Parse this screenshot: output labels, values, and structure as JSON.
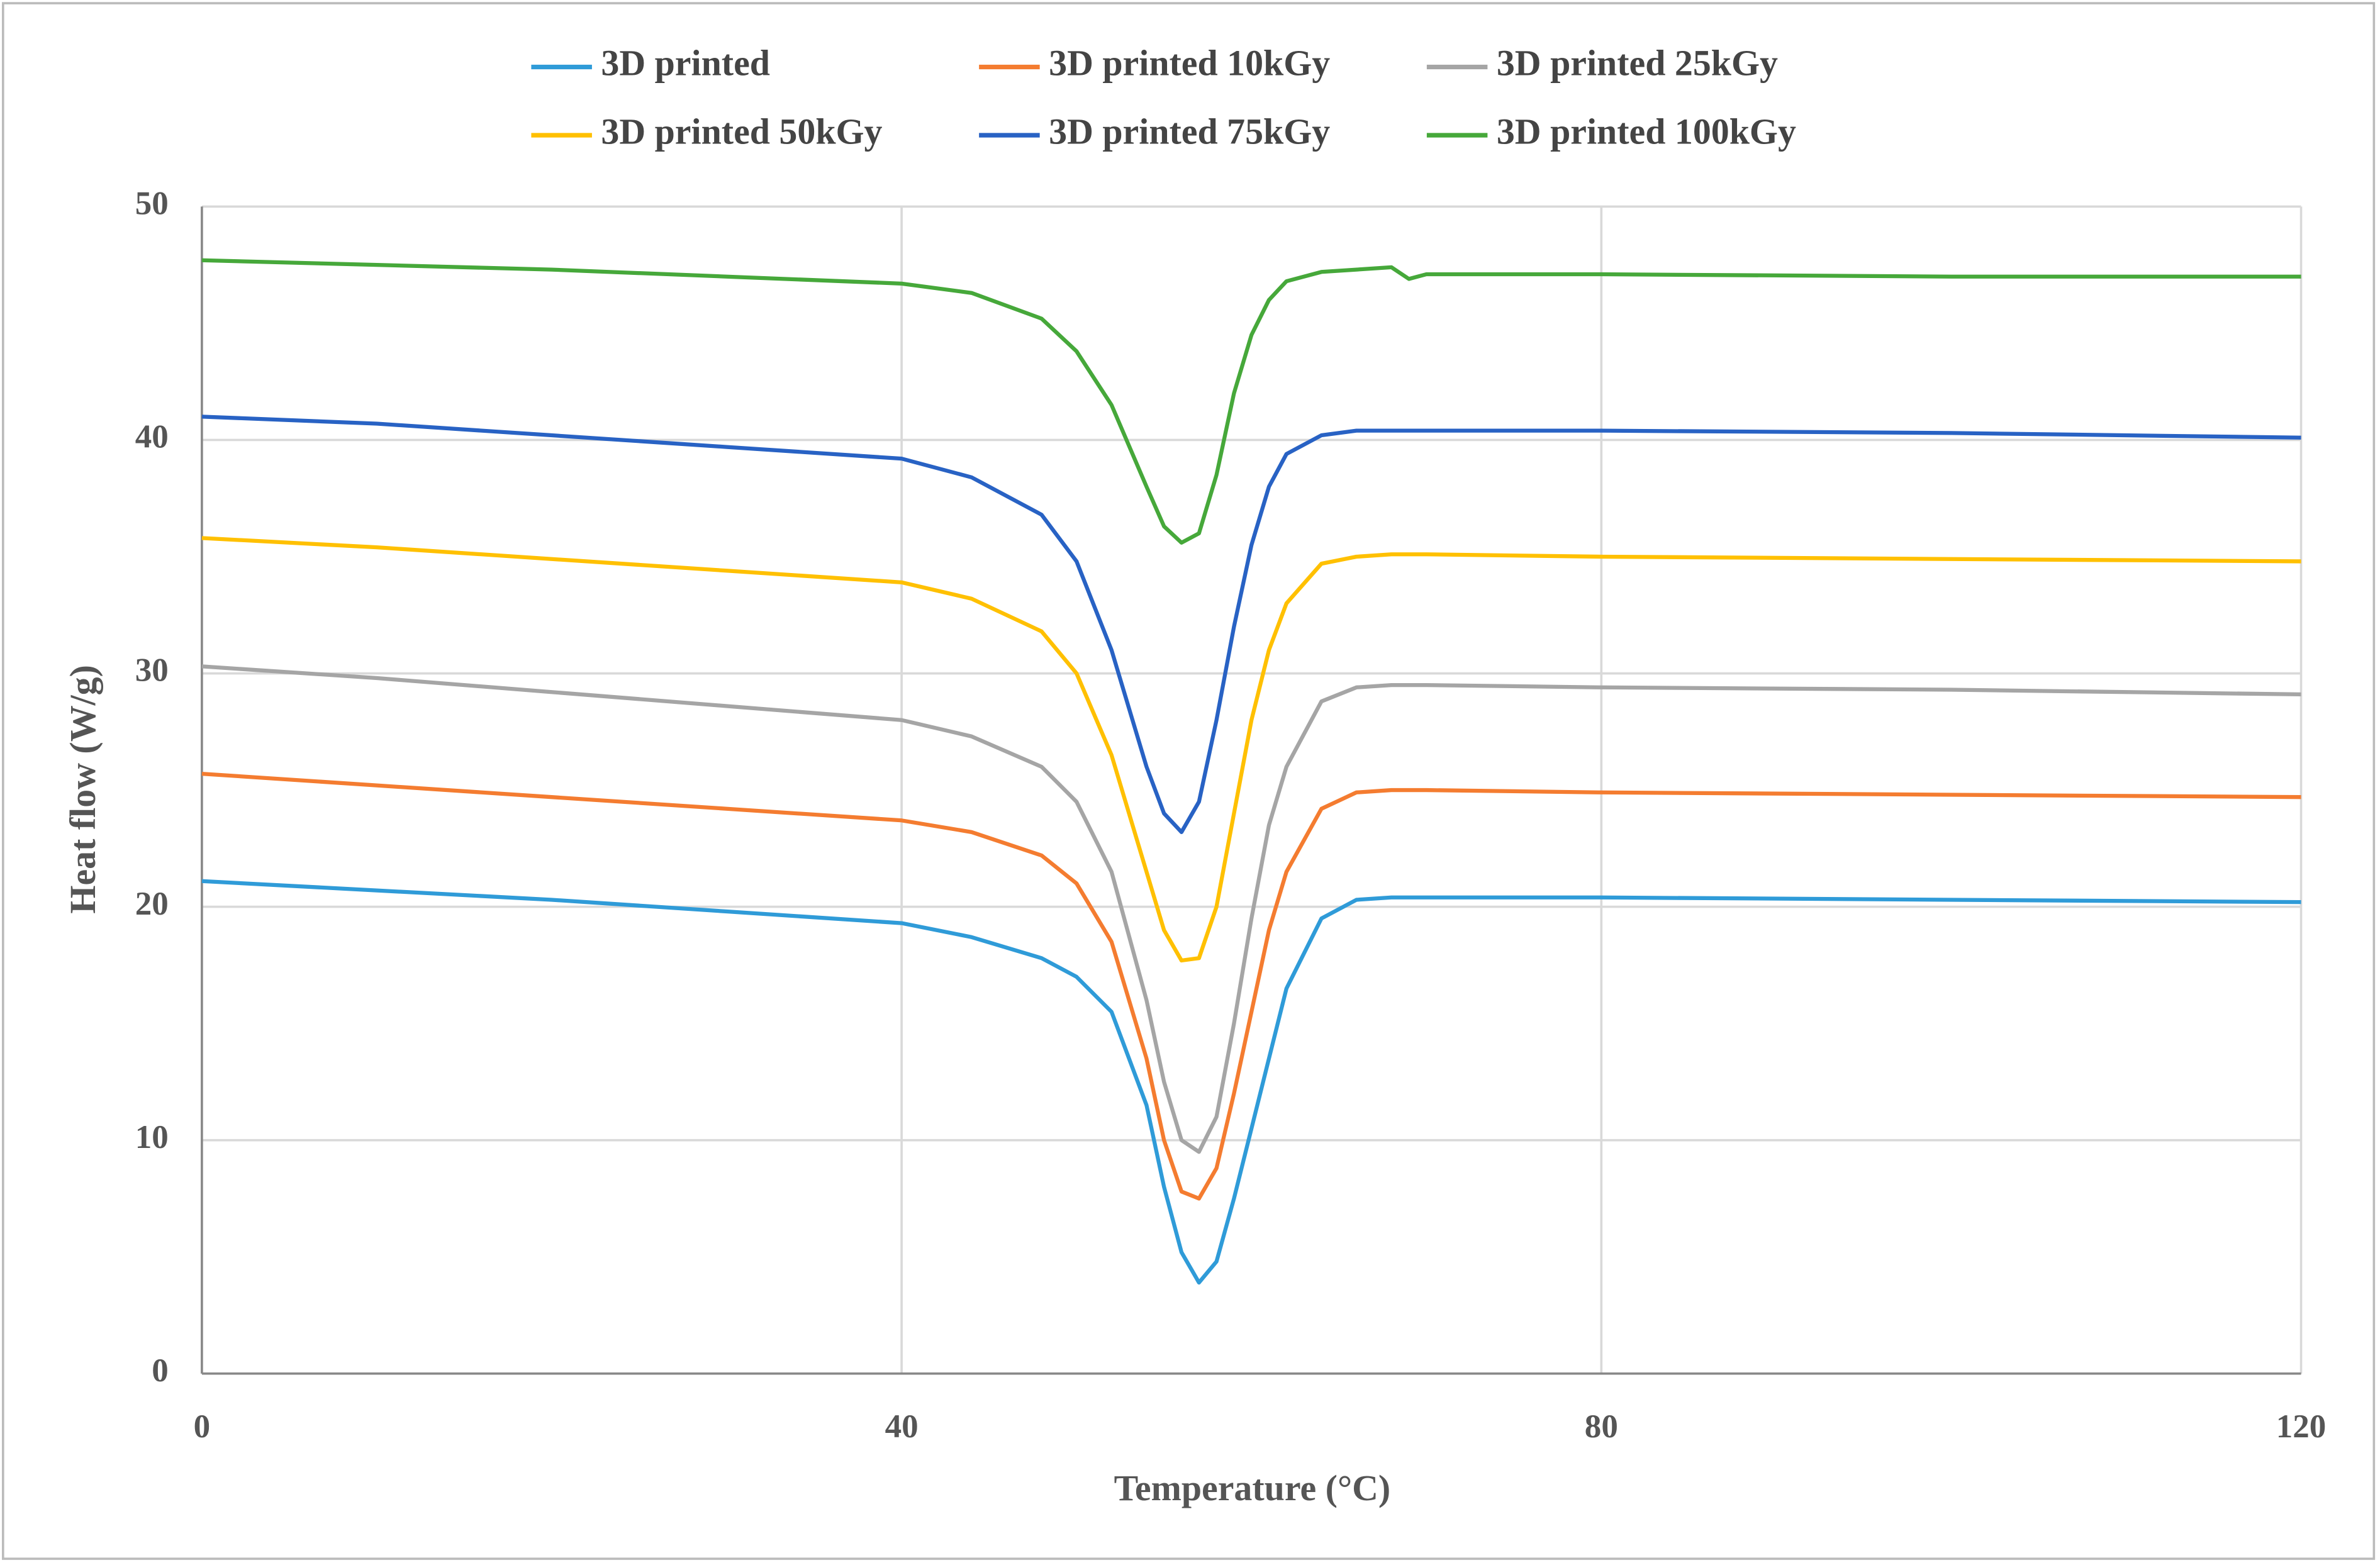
{
  "chart_data": {
    "type": "line",
    "x_label": "Temperature (°C)",
    "y_label": "Heat flow (W/g)",
    "x": [
      0,
      10,
      20,
      30,
      40,
      44,
      48,
      50,
      52,
      54,
      55,
      56,
      57,
      58,
      59,
      60,
      61,
      62,
      64,
      66,
      68,
      69,
      70,
      80,
      100,
      120
    ],
    "series": [
      {
        "name": "3D printed",
        "color": "#2f9bd8",
        "values": [
          21.1,
          20.7,
          20.3,
          19.8,
          19.3,
          18.7,
          17.8,
          17.0,
          15.5,
          11.5,
          8.0,
          5.2,
          3.9,
          4.8,
          7.5,
          10.5,
          13.5,
          16.5,
          19.5,
          20.3,
          20.4,
          20.4,
          20.4,
          20.4,
          20.3,
          20.2
        ]
      },
      {
        "name": "3D printed 10kGy",
        "color": "#f47c30",
        "values": [
          25.7,
          25.2,
          24.7,
          24.2,
          23.7,
          23.2,
          22.2,
          21.0,
          18.5,
          13.5,
          10.0,
          7.8,
          7.5,
          8.8,
          12.0,
          15.5,
          19.0,
          21.5,
          24.2,
          24.9,
          25.0,
          25.0,
          25.0,
          24.9,
          24.8,
          24.7
        ]
      },
      {
        "name": "3D printed 25kGy",
        "color": "#a5a5a5",
        "values": [
          30.3,
          29.8,
          29.2,
          28.6,
          28.0,
          27.3,
          26.0,
          24.5,
          21.5,
          16.0,
          12.5,
          10.0,
          9.5,
          11.0,
          15.0,
          19.5,
          23.5,
          26.0,
          28.8,
          29.4,
          29.5,
          29.5,
          29.5,
          29.4,
          29.3,
          29.1
        ]
      },
      {
        "name": "3D printed 50kGy",
        "color": "#ffc000",
        "values": [
          35.8,
          35.4,
          34.9,
          34.4,
          33.9,
          33.2,
          31.8,
          30.0,
          26.5,
          21.5,
          19.0,
          17.7,
          17.8,
          20.0,
          24.0,
          28.0,
          31.0,
          33.0,
          34.7,
          35.0,
          35.1,
          35.1,
          35.1,
          35.0,
          34.9,
          34.8
        ]
      },
      {
        "name": "3D printed 75kGy",
        "color": "#2862c4",
        "values": [
          41.0,
          40.7,
          40.2,
          39.7,
          39.2,
          38.4,
          36.8,
          34.8,
          31.0,
          26.0,
          24.0,
          23.2,
          24.5,
          28.0,
          32.0,
          35.5,
          38.0,
          39.4,
          40.2,
          40.4,
          40.4,
          40.4,
          40.4,
          40.4,
          40.3,
          40.1
        ]
      },
      {
        "name": "3D printed 100kGy",
        "color": "#46a83a",
        "values": [
          47.7,
          47.5,
          47.3,
          47.0,
          46.7,
          46.3,
          45.2,
          43.8,
          41.5,
          38.0,
          36.3,
          35.6,
          36.0,
          38.5,
          42.0,
          44.5,
          46.0,
          46.8,
          47.2,
          47.3,
          47.4,
          46.9,
          47.1,
          47.1,
          47.0,
          47.0
        ]
      }
    ],
    "xlim": [
      0,
      120
    ],
    "xticks": [
      0,
      40,
      80,
      120
    ],
    "ylim": [
      0,
      50
    ],
    "yticks": [
      0,
      10,
      20,
      30,
      40,
      50
    ],
    "grid": true,
    "legend": "top"
  }
}
